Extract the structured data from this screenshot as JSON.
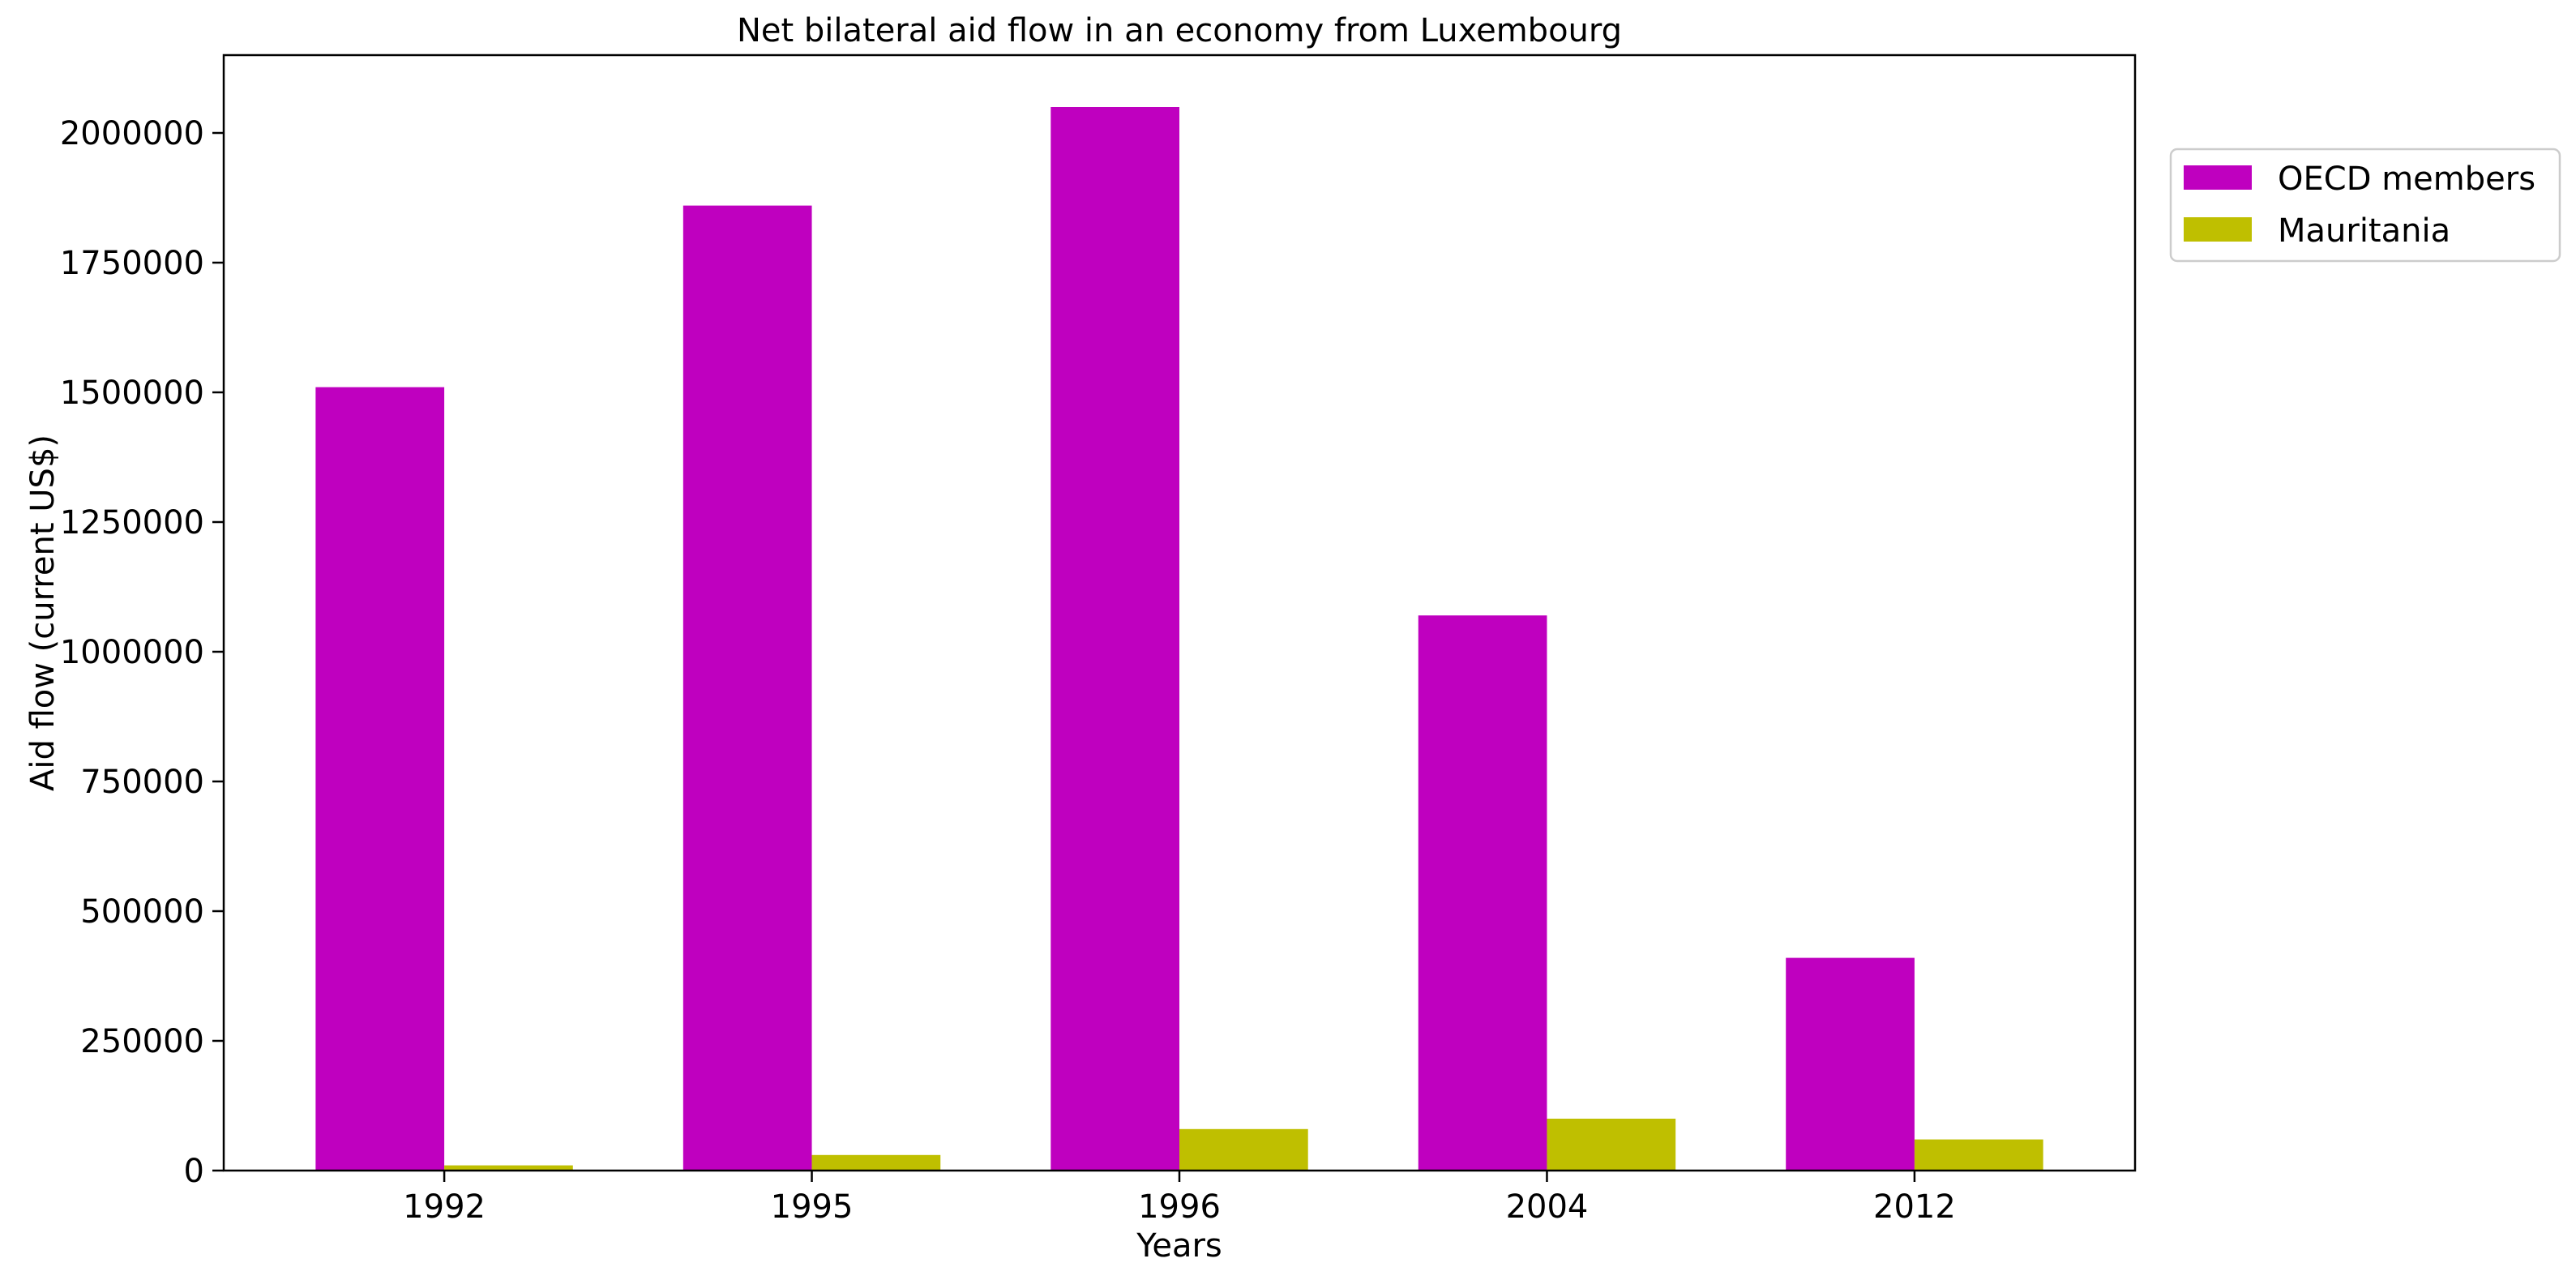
{
  "chart_data": {
    "type": "bar",
    "title": "Net bilateral aid flow in an economy from Luxembourg",
    "xlabel": "Years",
    "ylabel": "Aid flow (current US$)",
    "categories": [
      "1992",
      "1995",
      "1996",
      "2004",
      "2012"
    ],
    "series": [
      {
        "name": "OECD members",
        "color": "#bf00bf",
        "values": [
          1510000,
          1860000,
          2050000,
          1070000,
          410000
        ]
      },
      {
        "name": "Mauritania",
        "color": "#bfbf00",
        "values": [
          10000,
          30000,
          80000,
          100000,
          60000
        ]
      }
    ],
    "ylim": [
      0,
      2150000
    ],
    "yticks": [
      0,
      250000,
      500000,
      750000,
      1000000,
      1250000,
      1500000,
      1750000,
      2000000
    ],
    "grid": false,
    "legend_position": "outside-top-right"
  }
}
